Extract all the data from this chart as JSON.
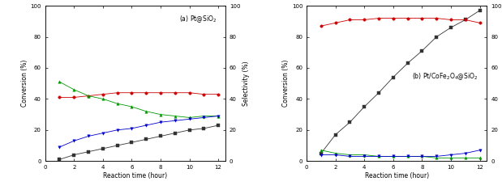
{
  "time": [
    1,
    2,
    3,
    4,
    5,
    6,
    7,
    8,
    9,
    10,
    11,
    12
  ],
  "a_conversion": [
    1,
    4,
    6,
    8,
    10,
    12,
    14,
    16,
    18,
    20,
    21,
    23
  ],
  "a_cinnamyl_alcohol": [
    41,
    41,
    42,
    43,
    44,
    44,
    44,
    44,
    44,
    44,
    43,
    43
  ],
  "a_hydrocinnamaldehyde": [
    51,
    46,
    42,
    40,
    37,
    35,
    32,
    30,
    29,
    28,
    29,
    29
  ],
  "a_phenylpropanol": [
    9,
    13,
    16,
    18,
    20,
    21,
    23,
    25,
    26,
    27,
    28,
    29
  ],
  "b_conversion": [
    5,
    17,
    25,
    35,
    44,
    54,
    63,
    71,
    80,
    86,
    91,
    97
  ],
  "b_cinnamyl_alcohol": [
    87,
    89,
    91,
    91,
    92,
    92,
    92,
    92,
    92,
    91,
    91,
    89
  ],
  "b_hydrocinnamaldehyde": [
    7,
    5,
    4,
    4,
    3,
    3,
    3,
    3,
    2,
    2,
    2,
    2
  ],
  "b_phenylpropanol": [
    4,
    4,
    3,
    3,
    3,
    3,
    3,
    3,
    3,
    4,
    5,
    7
  ],
  "color_conversion": "#333333",
  "color_cinnamyl_alcohol": "#cc0000",
  "color_hydrocinnamaldehyde": "#009900",
  "color_phenylpropanol": "#0000cc",
  "xlabel": "Reaction time (hour)",
  "ylabel_left": "Conversion (%)",
  "ylabel_right": "Selectivity (%)",
  "xlim": [
    0,
    12.5
  ],
  "ylim": [
    0,
    100
  ],
  "xticks": [
    0,
    2,
    4,
    6,
    8,
    10,
    12
  ],
  "yticks": [
    0,
    20,
    40,
    60,
    80,
    100
  ],
  "label_fontsize": 5.5,
  "tick_fontsize": 5.0,
  "title_fontsize": 5.5,
  "linewidth": 0.6,
  "markersize": 2.5
}
